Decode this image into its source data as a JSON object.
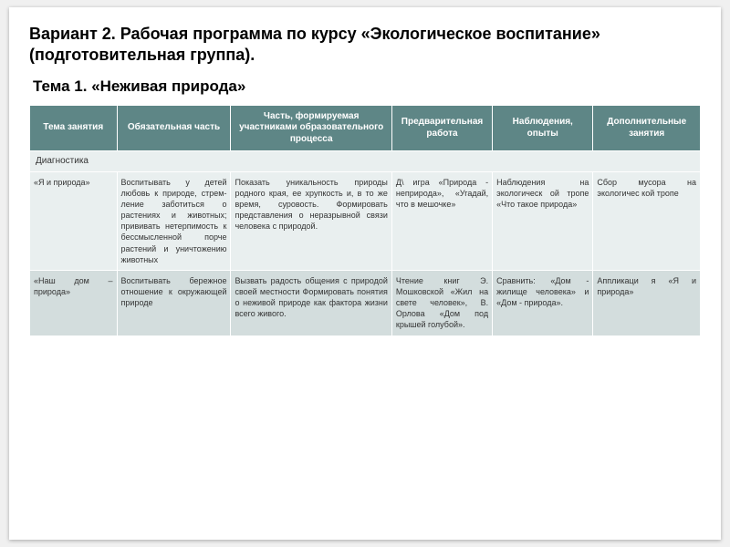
{
  "title": "Вариант 2. Рабочая программа по курсу «Экологическое воспитание» (подготовительная группа).",
  "subtitle": "Тема 1. «Неживая природа»",
  "columns": {
    "c0": "Тема занятия",
    "c1": "Обязательная часть",
    "c2": "Часть, формируемая участниками образовательного процесса",
    "c3": "Предварительная работа",
    "c4": "Наблюдения, опыты",
    "c5": "Дополнительные занятия"
  },
  "col_widths": [
    "13%",
    "17%",
    "24%",
    "15%",
    "15%",
    "16%"
  ],
  "header_bg": "#5e8686",
  "header_fg": "#ffffff",
  "row_odd_bg": "#e9efef",
  "row_even_bg": "#d3dddd",
  "diagnostics_label": "Диагностика",
  "rows": [
    {
      "topic": "«Я и природа»",
      "c1": "Воспитывать у детей любовь к природе, стрем­ление заботиться о растениях и животных; прививать нетер­пимость к бессмысленной порче растений и уничтожению животных",
      "c2": "Показать уникальность природы родного края, ее хрупкость и, в то же время, суровость.\nФормировать представления о неразрывной связи человека с природой.",
      "c3": "Д\\ игра «Природа - неприрода», «Угадай, что в мешочке»",
      "c4": "Наблюдения на экологическ ой тропе «Что такое природа»",
      "c5": "Сбор мусора на экологичес кой тропе"
    },
    {
      "topic": "«Наш дом – природа»",
      "c1": "Воспитывать бе­режное отношение к окружающей природе",
      "c2": "Вызвать радость общения с природой своей местности Формировать понятия о неживой природе как фактора жизни всего живого.",
      "c3": "Чтение книг Э. Мошковской «Жил на свете человек», В. Орлова «Дом под крышей голубой».",
      "c4": "Сравнить: «Дом - жилище человека» и «Дом - природа».",
      "c5": "Аппликаци я «Я и природа»"
    }
  ]
}
